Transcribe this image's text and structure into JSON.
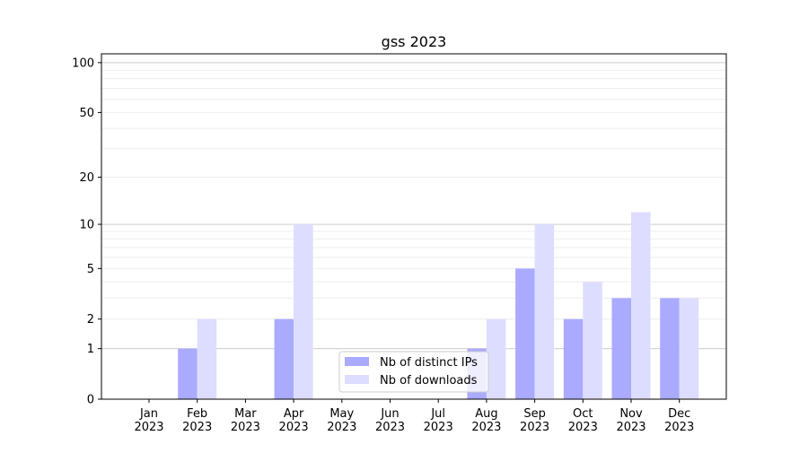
{
  "chart_data": {
    "type": "bar",
    "title": "gss 2023",
    "xlabel": "",
    "ylabel": "",
    "yscale": "log(1+y)",
    "ylim": [
      0,
      113
    ],
    "yticks": [
      0,
      1,
      2,
      5,
      10,
      20,
      50,
      100
    ],
    "grid": true,
    "legend": "bottom-center",
    "categories": [
      "Jan\n2023",
      "Feb\n2023",
      "Mar\n2023",
      "Apr\n2023",
      "May\n2023",
      "Jun\n2023",
      "Jul\n2023",
      "Aug\n2023",
      "Sep\n2023",
      "Oct\n2023",
      "Nov\n2023",
      "Dec\n2023"
    ],
    "series": [
      {
        "name": "Nb of distinct IPs",
        "color": "#aaaaff",
        "values": [
          0,
          1,
          0,
          2,
          0,
          0,
          0,
          1,
          5,
          2,
          3,
          3
        ]
      },
      {
        "name": "Nb of downloads",
        "color": "#ddddff",
        "values": [
          0,
          2,
          0,
          10,
          0,
          0,
          0,
          2,
          10,
          4,
          12,
          3
        ]
      }
    ]
  }
}
